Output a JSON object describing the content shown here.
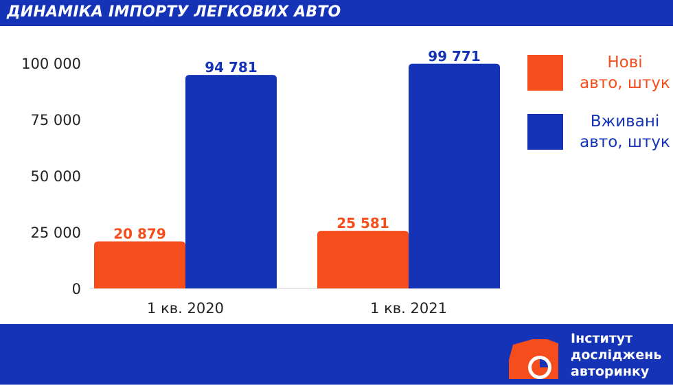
{
  "header": {
    "title": "ДИНАМІКА ІМПОРТУ ЛЕГКОВИХ АВТО"
  },
  "colors": {
    "brand_blue": "#1433b6",
    "series_new": "#f54e1c",
    "series_used": "#1433b6",
    "axis_text": "#222222"
  },
  "legend": {
    "items": [
      {
        "label_line1": "Нові",
        "label_line2": "авто, штук",
        "color": "#f54e1c"
      },
      {
        "label_line1": "Вживані",
        "label_line2": "авто, штук",
        "color": "#1433b6"
      }
    ]
  },
  "brand": {
    "line1": "Інститут",
    "line2": "досліджень",
    "line3": "авторинку",
    "icon": "car-pie-logo"
  },
  "chart_data": {
    "type": "bar",
    "categories": [
      "1 кв. 2020",
      "1 кв. 2021"
    ],
    "series": [
      {
        "name": "Нові авто, штук",
        "values": [
          20879,
          25581
        ],
        "labels": [
          "20 879",
          "25 581"
        ],
        "color": "#f54e1c"
      },
      {
        "name": "Вживані авто, штук",
        "values": [
          94781,
          99771
        ],
        "labels": [
          "94 781",
          "99 771"
        ],
        "color": "#1433b6"
      }
    ],
    "ylim": [
      0,
      100000
    ],
    "yticks": [
      0,
      25000,
      50000,
      75000,
      100000
    ],
    "ytick_labels": [
      "0",
      "25 000",
      "50 000",
      "75 000",
      "100 000"
    ],
    "grid": false,
    "legend_position": "right"
  }
}
